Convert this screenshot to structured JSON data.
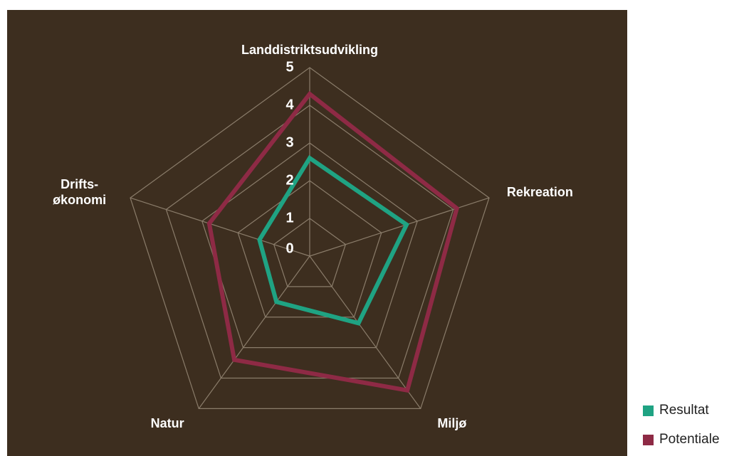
{
  "chart_data": {
    "type": "radar",
    "categories": [
      "Landdistriktsudvikling",
      "Rekreation",
      "Miljø",
      "Natur",
      "Drifts-\nøkonomi"
    ],
    "series": [
      {
        "name": "Resultat",
        "color": "#1fa383",
        "values": [
          2.6,
          2.7,
          2.2,
          1.5,
          1.4
        ]
      },
      {
        "name": "Potentiale",
        "color": "#8e2a45",
        "values": [
          4.3,
          4.1,
          4.4,
          3.4,
          2.8
        ]
      }
    ],
    "ylim": [
      0,
      5
    ],
    "yticks": [
      0,
      1,
      2,
      3,
      4,
      5
    ],
    "grid": true
  }
}
